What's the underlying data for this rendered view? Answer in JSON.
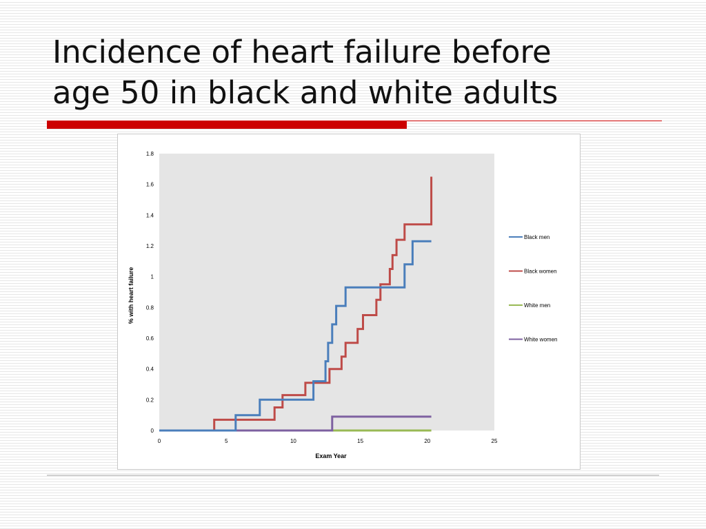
{
  "slide": {
    "title_line1": "Incidence of heart failure before",
    "title_line2": "age 50 in black and white adults",
    "accent_color": "#cc0000"
  },
  "chart_data": {
    "type": "line",
    "step": true,
    "xlabel": "Exam Year",
    "ylabel": "% with heart failure",
    "xlim": [
      0,
      25
    ],
    "ylim": [
      0,
      1.8
    ],
    "x_ticks": [
      0,
      5,
      10,
      15,
      20,
      25
    ],
    "y_ticks": [
      "0",
      "0.2",
      "0.4",
      "0.6",
      "0.8",
      "1",
      "1.2",
      "1.4",
      "1.6",
      "1.8"
    ],
    "plot_background": "#e5e5e5",
    "grid": false,
    "legend_position": "right",
    "series": [
      {
        "name": "Black men",
        "color": "#4a7ebb",
        "points": [
          [
            0,
            0
          ],
          [
            5.7,
            0
          ],
          [
            5.7,
            0.1
          ],
          [
            7.5,
            0.1
          ],
          [
            7.5,
            0.2
          ],
          [
            11.5,
            0.2
          ],
          [
            11.5,
            0.32
          ],
          [
            12.4,
            0.32
          ],
          [
            12.4,
            0.45
          ],
          [
            12.6,
            0.45
          ],
          [
            12.6,
            0.57
          ],
          [
            12.9,
            0.57
          ],
          [
            12.9,
            0.69
          ],
          [
            13.2,
            0.69
          ],
          [
            13.2,
            0.81
          ],
          [
            13.9,
            0.81
          ],
          [
            13.9,
            0.93
          ],
          [
            18.3,
            0.93
          ],
          [
            18.3,
            1.08
          ],
          [
            18.9,
            1.08
          ],
          [
            18.9,
            1.23
          ],
          [
            20.3,
            1.23
          ]
        ]
      },
      {
        "name": "Black women",
        "color": "#be4b48",
        "points": [
          [
            0,
            0
          ],
          [
            4.1,
            0
          ],
          [
            4.1,
            0.07
          ],
          [
            8.6,
            0.07
          ],
          [
            8.6,
            0.15
          ],
          [
            9.2,
            0.15
          ],
          [
            9.2,
            0.23
          ],
          [
            10.9,
            0.23
          ],
          [
            10.9,
            0.31
          ],
          [
            12.7,
            0.31
          ],
          [
            12.7,
            0.4
          ],
          [
            13.6,
            0.4
          ],
          [
            13.6,
            0.48
          ],
          [
            13.9,
            0.48
          ],
          [
            13.9,
            0.57
          ],
          [
            14.8,
            0.57
          ],
          [
            14.8,
            0.66
          ],
          [
            15.2,
            0.66
          ],
          [
            15.2,
            0.75
          ],
          [
            16.2,
            0.75
          ],
          [
            16.2,
            0.85
          ],
          [
            16.5,
            0.85
          ],
          [
            16.5,
            0.95
          ],
          [
            17.2,
            0.95
          ],
          [
            17.2,
            1.05
          ],
          [
            17.4,
            1.05
          ],
          [
            17.4,
            1.14
          ],
          [
            17.7,
            1.14
          ],
          [
            17.7,
            1.24
          ],
          [
            18.3,
            1.24
          ],
          [
            18.3,
            1.34
          ],
          [
            20.3,
            1.34
          ],
          [
            20.3,
            1.65
          ]
        ]
      },
      {
        "name": "White men",
        "color": "#98b954",
        "points": [
          [
            0,
            0
          ],
          [
            20.3,
            0
          ]
        ]
      },
      {
        "name": "White women",
        "color": "#7d60a0",
        "points": [
          [
            0,
            0
          ],
          [
            12.9,
            0
          ],
          [
            12.9,
            0.09
          ],
          [
            20.3,
            0.09
          ]
        ]
      }
    ]
  }
}
